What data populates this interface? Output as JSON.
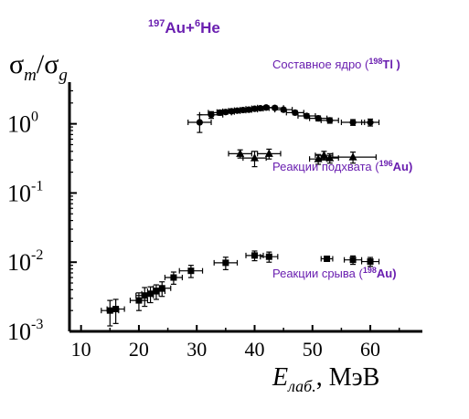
{
  "chart_data": {
    "type": "scatter",
    "title": {
      "pre1": "197",
      "mid1": "Au+",
      "pre2": "6",
      "mid2": "He"
    },
    "ylabel": {
      "s1": "σ",
      "sub1": "m",
      "slash": "/",
      "s2": "σ",
      "sub2": "g"
    },
    "xlabel": {
      "main": "E",
      "sub": "лаб.",
      "unit": ", МэВ"
    },
    "xlim": [
      8,
      69
    ],
    "ylim": [
      0.001,
      4
    ],
    "y_scale": "log",
    "x_ticks": [
      10,
      20,
      30,
      40,
      50,
      60
    ],
    "y_ticks": [
      {
        "value": 1,
        "base": "10",
        "exp": "0"
      },
      {
        "value": 0.1,
        "base": "10",
        "exp": "-1"
      },
      {
        "value": 0.01,
        "base": "10",
        "exp": "-2"
      },
      {
        "value": 0.001,
        "base": "10",
        "exp": "-3"
      }
    ],
    "colors": {
      "axis": "#000000",
      "data": "#000000",
      "label": "#6a1fb0"
    },
    "series": [
      {
        "label": {
          "text": "Составное ядро (",
          "sup": "198",
          "el": "Tl )"
        },
        "marker": "circle",
        "points": [
          {
            "x": 30.5,
            "y": 1.05,
            "xerr": 2.0,
            "yerr": 0.3
          },
          {
            "x": 32.5,
            "y": 1.35,
            "xerr": 2.0,
            "yerr": 0.15
          },
          {
            "x": 34.0,
            "y": 1.45,
            "xerr": 2.0,
            "yerr": 0.12
          },
          {
            "x": 35.0,
            "y": 1.48,
            "xerr": 1.5,
            "yerr": 0.1
          },
          {
            "x": 36.0,
            "y": 1.52,
            "xerr": 1.5,
            "yerr": 0.1
          },
          {
            "x": 37.0,
            "y": 1.55,
            "xerr": 1.5,
            "yerr": 0.1
          },
          {
            "x": 38.0,
            "y": 1.58,
            "xerr": 1.5,
            "yerr": 0.1
          },
          {
            "x": 39.0,
            "y": 1.6,
            "xerr": 1.5,
            "yerr": 0.1
          },
          {
            "x": 40.0,
            "y": 1.65,
            "xerr": 1.5,
            "yerr": 0.1
          },
          {
            "x": 41.0,
            "y": 1.68,
            "xerr": 1.5,
            "yerr": 0.1
          },
          {
            "x": 42.0,
            "y": 1.72,
            "xerr": 1.5,
            "yerr": 0.1
          },
          {
            "x": 43.5,
            "y": 1.7,
            "xerr": 1.5,
            "yerr": 0.1
          },
          {
            "x": 45.0,
            "y": 1.6,
            "xerr": 1.5,
            "yerr": 0.1
          },
          {
            "x": 47.0,
            "y": 1.45,
            "xerr": 1.5,
            "yerr": 0.1
          },
          {
            "x": 49.0,
            "y": 1.3,
            "xerr": 1.5,
            "yerr": 0.1
          },
          {
            "x": 51.0,
            "y": 1.2,
            "xerr": 1.5,
            "yerr": 0.1
          },
          {
            "x": 53.0,
            "y": 1.12,
            "xerr": 1.5,
            "yerr": 0.1
          },
          {
            "x": 57.0,
            "y": 1.05,
            "xerr": 2.0,
            "yerr": 0.1
          },
          {
            "x": 60.0,
            "y": 1.05,
            "xerr": 1.5,
            "yerr": 0.12
          }
        ]
      },
      {
        "label": {
          "text": "Реакции подхвата (",
          "sup": "196",
          "el": "Au)"
        },
        "marker": "triangle",
        "points": [
          {
            "x": 37.5,
            "y": 0.37,
            "xerr": 2.0,
            "yerr": 0.05
          },
          {
            "x": 40.0,
            "y": 0.32,
            "xerr": 2.0,
            "yerr": 0.08
          },
          {
            "x": 42.5,
            "y": 0.37,
            "xerr": 2.0,
            "yerr": 0.06
          },
          {
            "x": 51.0,
            "y": 0.31,
            "xerr": 1.5,
            "yerr": 0.05
          },
          {
            "x": 52.0,
            "y": 0.35,
            "xerr": 1.5,
            "yerr": 0.05
          },
          {
            "x": 53.0,
            "y": 0.32,
            "xerr": 1.5,
            "yerr": 0.05
          },
          {
            "x": 57.0,
            "y": 0.33,
            "xerr": 4.0,
            "yerr": 0.06
          }
        ]
      },
      {
        "label": {
          "text": "Реакции срыва (",
          "sup": "198",
          "el": "Au)"
        },
        "marker": "square",
        "points": [
          {
            "x": 15.0,
            "y": 0.002,
            "xerr": 1.5,
            "yerr": 0.0008
          },
          {
            "x": 16.0,
            "y": 0.0021,
            "xerr": 1.5,
            "yerr": 0.0008
          },
          {
            "x": 20.0,
            "y": 0.0028,
            "xerr": 1.5,
            "yerr": 0.0008
          },
          {
            "x": 21.0,
            "y": 0.0033,
            "xerr": 1.5,
            "yerr": 0.001
          },
          {
            "x": 22.0,
            "y": 0.0035,
            "xerr": 1.5,
            "yerr": 0.0009
          },
          {
            "x": 23.0,
            "y": 0.0038,
            "xerr": 1.5,
            "yerr": 0.0009
          },
          {
            "x": 24.0,
            "y": 0.0042,
            "xerr": 1.5,
            "yerr": 0.001
          },
          {
            "x": 26.0,
            "y": 0.006,
            "xerr": 1.5,
            "yerr": 0.0012
          },
          {
            "x": 29.0,
            "y": 0.0075,
            "xerr": 2.0,
            "yerr": 0.0015
          },
          {
            "x": 35.0,
            "y": 0.0098,
            "xerr": 2.0,
            "yerr": 0.002
          },
          {
            "x": 40.0,
            "y": 0.0125,
            "xerr": 1.5,
            "yerr": 0.002
          },
          {
            "x": 42.5,
            "y": 0.012,
            "xerr": 1.5,
            "yerr": 0.002
          },
          {
            "x": 52.5,
            "y": 0.0112,
            "xerr": 1.0,
            "yerr": 0.0005
          },
          {
            "x": 57.0,
            "y": 0.0108,
            "xerr": 1.5,
            "yerr": 0.0015
          },
          {
            "x": 60.0,
            "y": 0.0102,
            "xerr": 1.5,
            "yerr": 0.0015
          }
        ]
      }
    ]
  }
}
